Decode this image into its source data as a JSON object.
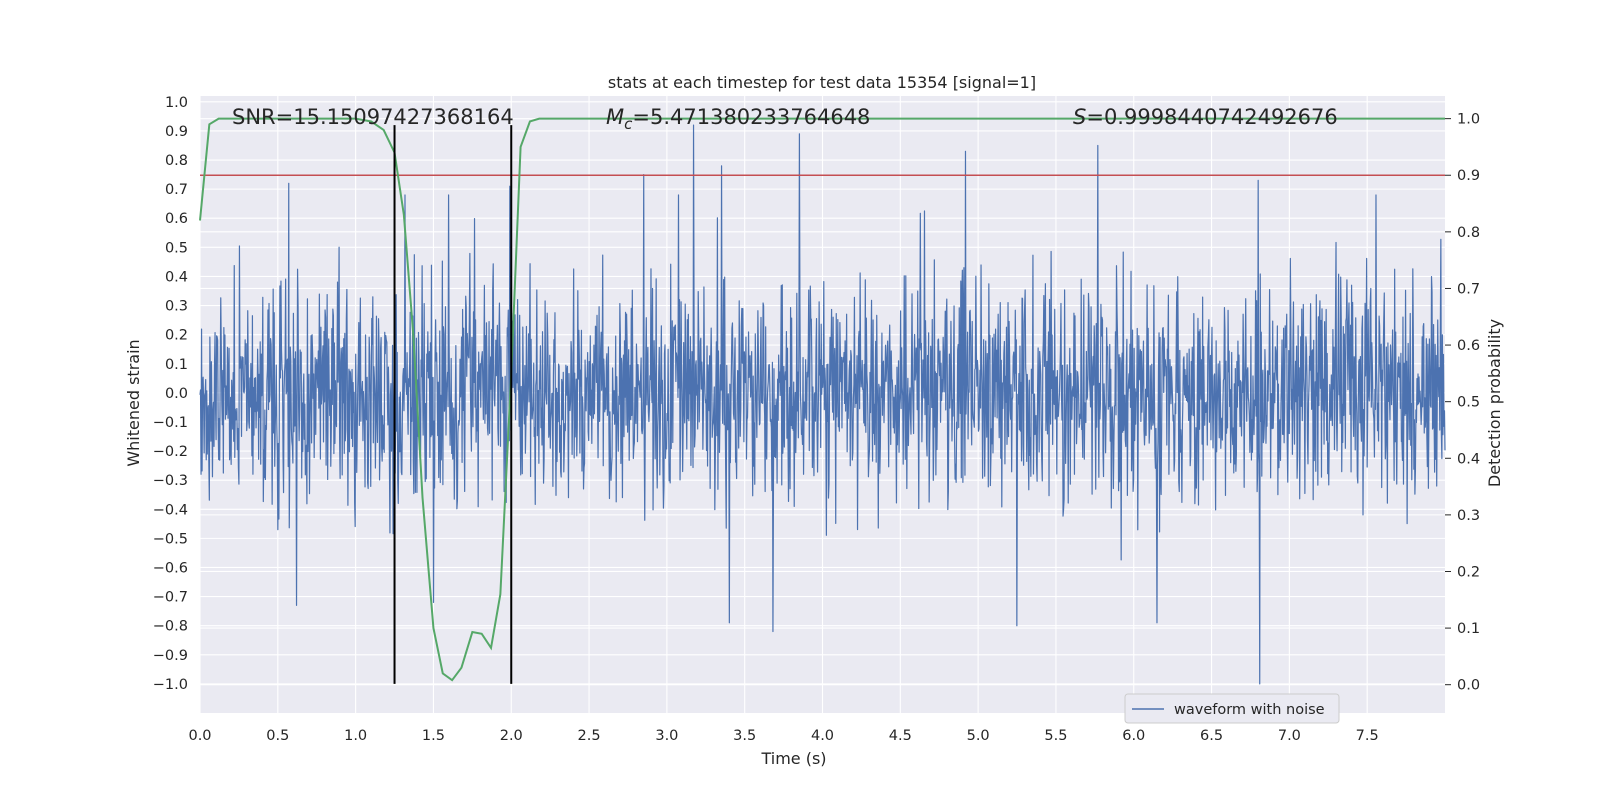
{
  "chart_data": {
    "type": "line",
    "title": "stats at each timestep for test data 15354 [signal=1]",
    "xlabel": "Time (s)",
    "ylabel": "Whitened strain",
    "ylabel_right": "Detection probability",
    "xlim": [
      0.0,
      8.0
    ],
    "ylim": [
      -1.1,
      1.02
    ],
    "ylim_right": [
      -0.05,
      1.04
    ],
    "xticks": [
      0.0,
      0.5,
      1.0,
      1.5,
      2.0,
      2.5,
      3.0,
      3.5,
      4.0,
      4.5,
      5.0,
      5.5,
      6.0,
      6.5,
      7.0,
      7.5
    ],
    "xtick_labels": [
      "0.0",
      "0.5",
      "1.0",
      "1.5",
      "2.0",
      "2.5",
      "3.0",
      "3.5",
      "4.0",
      "4.5",
      "5.0",
      "5.5",
      "6.0",
      "6.5",
      "7.0",
      "7.5"
    ],
    "yticks": [
      -1.0,
      -0.9,
      -0.8,
      -0.7,
      -0.6,
      -0.5,
      -0.4,
      -0.3,
      -0.2,
      -0.1,
      0.0,
      0.1,
      0.2,
      0.3,
      0.4,
      0.5,
      0.6,
      0.7,
      0.8,
      0.9,
      1.0
    ],
    "ytick_labels": [
      "−1.0",
      "−0.9",
      "−0.8",
      "−0.7",
      "−0.6",
      "−0.5",
      "−0.4",
      "−0.3",
      "−0.2",
      "−0.1",
      "0.0",
      "0.1",
      "0.2",
      "0.3",
      "0.4",
      "0.5",
      "0.6",
      "0.7",
      "0.8",
      "0.9",
      "1.0"
    ],
    "yticks_right": [
      0.0,
      0.1,
      0.2,
      0.3,
      0.4,
      0.5,
      0.6,
      0.7,
      0.8,
      0.9,
      1.0
    ],
    "ytick_labels_right": [
      "0.0",
      "0.1",
      "0.2",
      "0.3",
      "0.4",
      "0.5",
      "0.6",
      "0.7",
      "0.8",
      "0.9",
      "1.0"
    ],
    "grid": true,
    "legend": {
      "placement": "lower-right",
      "entries": [
        "waveform with noise"
      ]
    },
    "annotations": {
      "snr": "SNR=15.150974273681​64",
      "mc_symbol": "M",
      "mc_subscript": "c",
      "mc_value": "=5.471380233764648",
      "s_symbol": "S",
      "s_value": "=0.9998440742492676"
    },
    "threshold_line": {
      "axis": "right",
      "y": 0.9,
      "color": "#c44e52"
    },
    "vertical_lines": [
      {
        "x": 1.25,
        "y_range": [
          -1.0,
          0.92
        ],
        "color": "#000000"
      },
      {
        "x": 2.0,
        "y_range": [
          -1.0,
          0.92
        ],
        "color": "#000000"
      }
    ],
    "series": [
      {
        "name": "waveform with noise",
        "axis": "left",
        "color": "#4c72b0",
        "generated": {
          "t_start": 0.0,
          "t_end": 8.0,
          "n_points": 2400,
          "typical_abs_max": 0.32,
          "max": 0.92,
          "min": -1.0
        },
        "peaks": [
          [
            0.57,
            0.72
          ],
          [
            1.99,
            0.71
          ],
          [
            2.85,
            0.75
          ],
          [
            3.17,
            0.92
          ],
          [
            3.35,
            0.78
          ],
          [
            3.85,
            0.89
          ],
          [
            4.92,
            0.83
          ],
          [
            5.77,
            0.85
          ],
          [
            6.15,
            0.79
          ],
          [
            6.8,
            0.73
          ],
          [
            3.4,
            -0.79
          ],
          [
            3.68,
            -0.82
          ],
          [
            5.25,
            -0.8
          ],
          [
            6.15,
            -0.79
          ],
          [
            6.81,
            -1.0
          ],
          [
            1.5,
            -0.72
          ],
          [
            0.62,
            -0.73
          ]
        ]
      },
      {
        "name": "",
        "axis": "right",
        "color": "#55a868",
        "x": [
          0.0,
          0.06,
          0.12,
          0.25,
          0.5,
          0.75,
          1.0,
          1.1,
          1.18,
          1.25,
          1.31,
          1.37,
          1.43,
          1.5,
          1.56,
          1.62,
          1.68,
          1.75,
          1.81,
          1.87,
          1.93,
          2.0,
          2.06,
          2.12,
          2.18,
          2.3,
          2.5,
          3.0,
          4.0,
          5.0,
          6.0,
          7.0,
          8.0
        ],
        "values": [
          0.82,
          0.99,
          1.0,
          1.0,
          1.0,
          1.0,
          1.0,
          0.995,
          0.98,
          0.94,
          0.83,
          0.62,
          0.33,
          0.1,
          0.02,
          0.008,
          0.03,
          0.093,
          0.09,
          0.065,
          0.16,
          0.55,
          0.95,
          0.995,
          1.0,
          1.0,
          1.0,
          1.0,
          1.0,
          1.0,
          1.0,
          1.0,
          1.0
        ]
      }
    ]
  }
}
